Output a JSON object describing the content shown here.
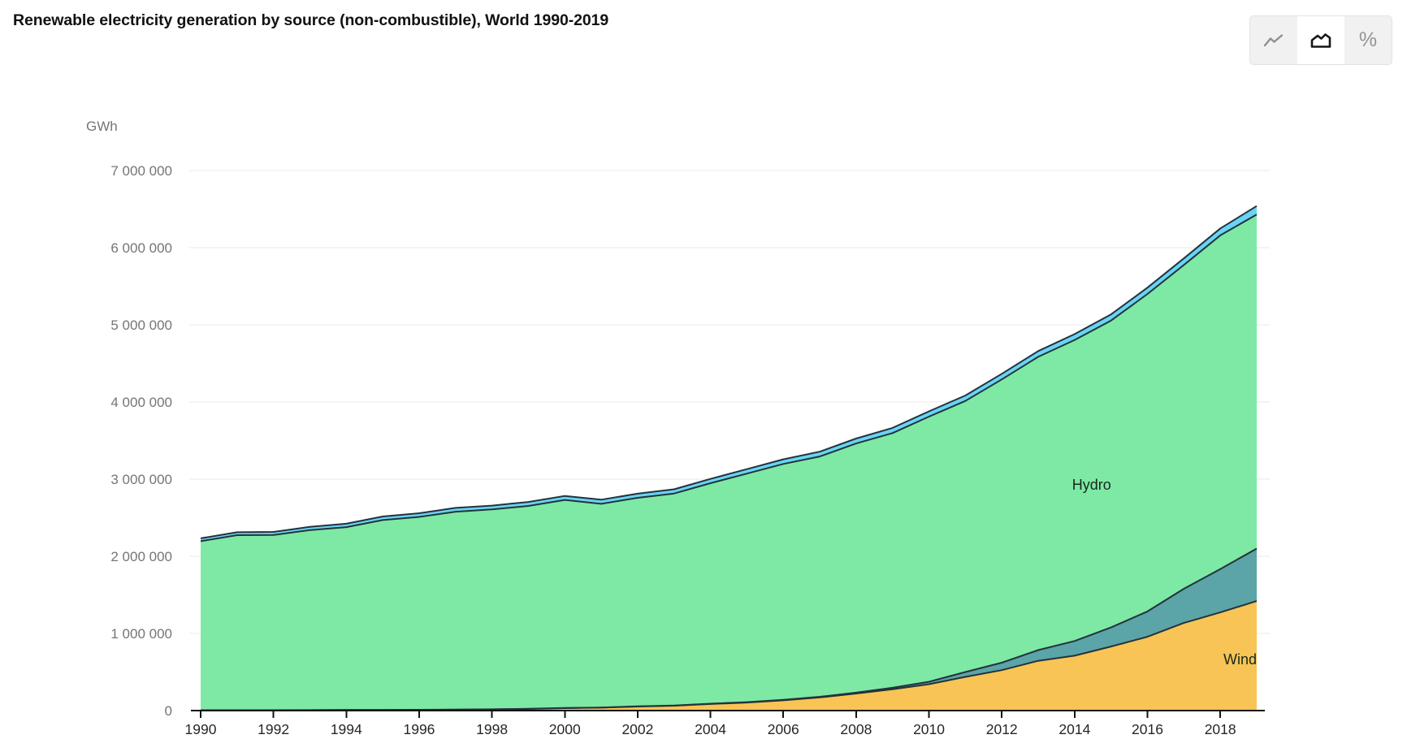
{
  "header": {
    "title": "Renewable electricity generation by source (non-combustible), World 1990-2019"
  },
  "toolbar": {
    "active_chart_type": "stacked-area",
    "percent_glyph": "%",
    "buttons": [
      {
        "name": "line-chart",
        "icon": "line-chart-icon",
        "active": false
      },
      {
        "name": "stacked-area-chart",
        "icon": "area-chart-icon",
        "active": true
      },
      {
        "name": "percent-share",
        "icon": "percent-icon",
        "active": false
      }
    ]
  },
  "chart_data": {
    "type": "area",
    "stacked": true,
    "title": "Renewable electricity generation by source (non-combustible), World 1990-2019",
    "ylabel": "GWh",
    "xlabel": "",
    "grid": true,
    "legend_position": "in-plot-annotations",
    "ylim": [
      0,
      7000000
    ],
    "xlim": [
      1990,
      2019
    ],
    "ytick_labels": [
      "0",
      "1 000 000",
      "2 000 000",
      "3 000 000",
      "4 000 000",
      "5 000 000",
      "6 000 000",
      "7 000 000"
    ],
    "ytick_values": [
      0,
      1000000,
      2000000,
      3000000,
      4000000,
      5000000,
      6000000,
      7000000
    ],
    "xticks": [
      1990,
      1992,
      1994,
      1996,
      1998,
      2000,
      2002,
      2004,
      2006,
      2008,
      2010,
      2012,
      2014,
      2016,
      2018
    ],
    "x": [
      1990,
      1991,
      1992,
      1993,
      1994,
      1995,
      1996,
      1997,
      1998,
      1999,
      2000,
      2001,
      2002,
      2003,
      2004,
      2005,
      2006,
      2007,
      2008,
      2009,
      2010,
      2011,
      2012,
      2013,
      2014,
      2015,
      2016,
      2017,
      2018,
      2019
    ],
    "series": [
      {
        "id": "wind",
        "display_label": "Wind",
        "label_on_chart": true,
        "color": "#F8C455",
        "values": [
          3900,
          4100,
          4700,
          5700,
          7000,
          8000,
          9200,
          12000,
          16000,
          21200,
          31400,
          38400,
          52300,
          62900,
          85100,
          104100,
          132900,
          170700,
          220600,
          276000,
          341600,
          436800,
          523800,
          645700,
          712000,
          831000,
          957000,
          1136000,
          1273000,
          1420000
        ]
      },
      {
        "id": "unlabeled-teal-band",
        "display_label": "",
        "label_on_chart": false,
        "color": "#5BA4A8",
        "values": [
          400,
          500,
          600,
          700,
          800,
          900,
          1000,
          1100,
          1300,
          1500,
          1800,
          2100,
          2500,
          3000,
          4000,
          5000,
          6500,
          8000,
          12000,
          20000,
          32000,
          63000,
          97000,
          139000,
          190000,
          247000,
          328000,
          443000,
          562000,
          680000
        ]
      },
      {
        "id": "hydro",
        "display_label": "Hydro",
        "label_on_chart": true,
        "color": "#7EE9A4",
        "values": [
          2192000,
          2269000,
          2270000,
          2333000,
          2370000,
          2461000,
          2500000,
          2565000,
          2590000,
          2630000,
          2697000,
          2640000,
          2703000,
          2748000,
          2858000,
          2962000,
          3057000,
          3115000,
          3229000,
          3301000,
          3437000,
          3514000,
          3672000,
          3801000,
          3902000,
          3978000,
          4115000,
          4197000,
          4325000,
          4330000
        ]
      },
      {
        "id": "unlabeled-light-blue-band",
        "display_label": "",
        "label_on_chart": false,
        "color": "#69D4F5",
        "values": [
          36000,
          38000,
          40000,
          42000,
          44000,
          46000,
          48000,
          49000,
          50000,
          51000,
          52000,
          53000,
          54000,
          55000,
          56000,
          58000,
          60000,
          62000,
          65000,
          67000,
          68000,
          70000,
          72000,
          74000,
          76000,
          80000,
          82000,
          85000,
          90000,
          110000
        ]
      }
    ],
    "annotations": [
      {
        "text": "Hydro",
        "year": 2013.93,
        "value": 2926000,
        "anchor": "start"
      },
      {
        "text": "Wind",
        "year": 2019,
        "value": 663000,
        "anchor": "end"
      }
    ],
    "style": {
      "boundary_stroke": "#22333b",
      "gridline_color": "#e8e8e8",
      "axis_color": "#111111",
      "ytick_label_color": "#757575",
      "xtick_label_color": "#262626",
      "annotation_color": "#16271d",
      "background": "#ffffff"
    }
  }
}
